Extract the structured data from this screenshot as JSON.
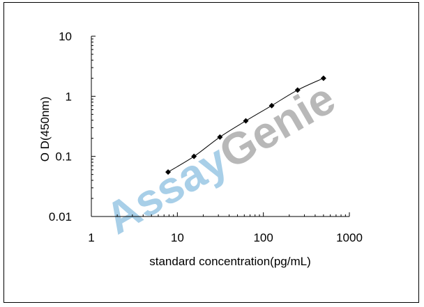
{
  "chart_data": {
    "type": "scatter",
    "x_scale": "log",
    "y_scale": "log",
    "xlabel": "standard concentration(pg/mL)",
    "ylabel": "O D(450nm)",
    "xlim": [
      1,
      1000
    ],
    "ylim": [
      0.01,
      10
    ],
    "x_ticks": [
      1,
      10,
      100,
      1000
    ],
    "x_tick_labels": [
      "1",
      "10",
      "100",
      "1000"
    ],
    "y_ticks": [
      0.01,
      0.1,
      1,
      10
    ],
    "y_tick_labels": [
      "0.01",
      "0.1",
      "1",
      "10"
    ],
    "grid": false,
    "series": [
      {
        "x": [
          7.8,
          15.6,
          31.25,
          62.5,
          125,
          250,
          500
        ],
        "y": [
          0.055,
          0.1,
          0.21,
          0.39,
          0.7,
          1.27,
          2.0
        ],
        "marker": "diamond",
        "fit_line": true
      }
    ],
    "colors": {
      "marker": "#000000",
      "line": "#000000",
      "watermark": "#a8cfe8"
    }
  },
  "watermark": {
    "text_part1": "Assay",
    "text_part2": "Genie"
  }
}
